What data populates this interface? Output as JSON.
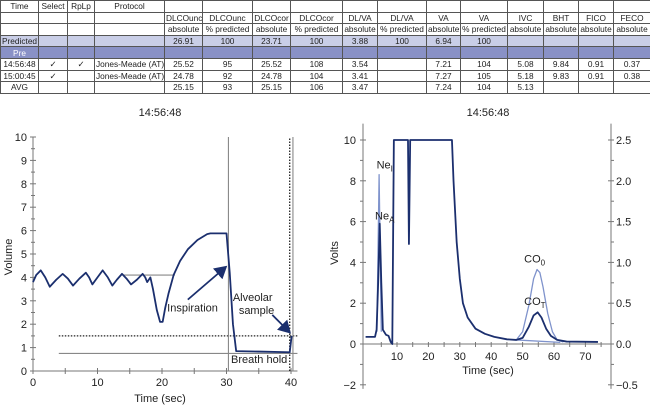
{
  "table": {
    "header_top": [
      "Time",
      "Select",
      "RpLp",
      "Protocol",
      "",
      "",
      "",
      "",
      "",
      "",
      "",
      "",
      "",
      "",
      "",
      ""
    ],
    "header_measure": [
      "",
      "",
      "",
      "",
      "DLCOunc",
      "DLCOunc",
      "DLCOcor",
      "DLCOcor",
      "DL/VA",
      "DL/VA",
      "VA",
      "VA",
      "IVC",
      "BHT",
      "FICO",
      "FECO"
    ],
    "header_unit": [
      "",
      "",
      "",
      "",
      "absolute",
      "% predicted",
      "absolute",
      "% predicted",
      "absolute",
      "% predicted",
      "absolute",
      "% predicted",
      "absolute",
      "absolute",
      "absolute",
      "absolute"
    ],
    "rows": [
      {
        "kind": "pred",
        "cells": [
          "Predicted",
          "",
          "",
          "",
          "26.91",
          "100",
          "23.71",
          "100",
          "3.88",
          "100",
          "6.94",
          "100",
          "",
          "",
          "",
          ""
        ]
      },
      {
        "kind": "pre",
        "cells": [
          "Pre",
          "",
          "",
          "",
          "",
          "",
          "",
          "",
          "",
          "",
          "",
          "",
          "",
          "",
          "",
          ""
        ]
      },
      {
        "kind": "data",
        "cells": [
          "14:56:48",
          "✓",
          "✓",
          "Jones-Meade (AT)",
          "25.52",
          "95",
          "25.52",
          "108",
          "3.54",
          "",
          "7.21",
          "104",
          "5.08",
          "9.84",
          "0.91",
          "0.37"
        ]
      },
      {
        "kind": "data",
        "cells": [
          "15:00:45",
          "✓",
          "",
          "Jones-Meade (AT)",
          "24.78",
          "92",
          "24.78",
          "104",
          "3.41",
          "",
          "7.27",
          "105",
          "5.18",
          "9.83",
          "0.91",
          "0.38"
        ]
      },
      {
        "kind": "data",
        "cells": [
          "AVG",
          "",
          "",
          "",
          "25.15",
          "93",
          "25.15",
          "106",
          "3.47",
          "",
          "7.24",
          "104",
          "5.13",
          "",
          "",
          ""
        ]
      }
    ],
    "colors": {
      "predicted": "#c9cee7",
      "pre": "#8991c6"
    }
  },
  "chart_data": [
    {
      "type": "line",
      "title": "14:56:48",
      "xlabel": "Time (sec)",
      "ylabel": "Volume",
      "xlim": [
        0,
        40
      ],
      "ylim": [
        0,
        10
      ],
      "xticks": [
        "0",
        "10",
        "20",
        "30",
        "40"
      ],
      "yticks": [
        "0",
        "1",
        "2",
        "3",
        "4",
        "5",
        "6",
        "7",
        "8",
        "9",
        "10"
      ],
      "series": [
        {
          "name": "volume",
          "color": "#1b2f6e",
          "points": [
            [
              0,
              3.8
            ],
            [
              0.5,
              4.1
            ],
            [
              1.2,
              4.3
            ],
            [
              1.9,
              4.0
            ],
            [
              2.6,
              3.6
            ],
            [
              3.6,
              3.9
            ],
            [
              4.6,
              4.15
            ],
            [
              5.4,
              3.95
            ],
            [
              6.2,
              3.65
            ],
            [
              7.2,
              3.95
            ],
            [
              8.2,
              4.2
            ],
            [
              8.7,
              4.0
            ],
            [
              9.2,
              3.7
            ],
            [
              10,
              4.0
            ],
            [
              10.8,
              4.3
            ],
            [
              11.6,
              4.0
            ],
            [
              12.3,
              3.65
            ],
            [
              13,
              3.9
            ],
            [
              13.8,
              4.15
            ],
            [
              14.5,
              3.95
            ],
            [
              15.2,
              3.7
            ],
            [
              16.1,
              3.9
            ],
            [
              17,
              4.15
            ],
            [
              17.4,
              4.0
            ],
            [
              17.7,
              3.8
            ],
            [
              18.2,
              4.0
            ],
            [
              18.6,
              3.5
            ],
            [
              19.2,
              2.6
            ],
            [
              19.7,
              2.1
            ],
            [
              20.1,
              2.1
            ],
            [
              20.5,
              2.7
            ],
            [
              21,
              3.3
            ],
            [
              21.8,
              4.1
            ],
            [
              22.8,
              4.7
            ],
            [
              24,
              5.2
            ],
            [
              25.5,
              5.6
            ],
            [
              27,
              5.85
            ],
            [
              27.5,
              5.88
            ],
            [
              30,
              5.88
            ],
            [
              30.5,
              4.2
            ],
            [
              31,
              2.0
            ],
            [
              31.5,
              0.85
            ],
            [
              35,
              0.83
            ],
            [
              39.8,
              0.8
            ],
            [
              40.1,
              1.5
            ]
          ]
        }
      ],
      "reference_lines": [
        {
          "kind": "h",
          "y": 4.1,
          "x": [
            14,
            22
          ],
          "style": "solid"
        },
        {
          "kind": "h",
          "y": 0.75,
          "x": [
            4,
            41
          ],
          "style": "solid"
        },
        {
          "kind": "h",
          "y": 1.5,
          "x": [
            4,
            41
          ],
          "style": "dotted"
        },
        {
          "kind": "v",
          "x": 30.3,
          "y": [
            0,
            10
          ],
          "style": "solid"
        },
        {
          "kind": "v",
          "x": 40.3,
          "y": [
            0,
            10
          ],
          "style": "solid"
        },
        {
          "kind": "v",
          "x": 39.8,
          "y": [
            0,
            10
          ],
          "style": "dotted"
        }
      ],
      "annotations": [
        {
          "text": "Inspiration",
          "at": [
            20.8,
            2.55
          ],
          "arrow_to": [
            29.9,
            4.45
          ]
        },
        {
          "text": "Alveolar sample",
          "at": [
            31.6,
            3.0
          ],
          "arrow_to": [
            39.8,
            1.65
          ]
        },
        {
          "text": "Breath hold",
          "at": [
            30.7,
            0.35
          ]
        }
      ]
    },
    {
      "type": "line",
      "title": "14:56:48",
      "xlabel": "Time (sec)",
      "ylabel": "Volts",
      "xlim": [
        0,
        75
      ],
      "ylim": [
        -2,
        10.8
      ],
      "y2lim": [
        -0.5,
        2.7
      ],
      "xticks": [
        "10",
        "20",
        "30",
        "40",
        "50",
        "60",
        "70"
      ],
      "yticks": [
        "−2",
        "0",
        "2",
        "4",
        "6",
        "8",
        "10"
      ],
      "y2ticks": [
        "−0.5",
        "0.0",
        "0.5",
        "1.0",
        "1.5",
        "2.0",
        "2.5"
      ],
      "series": [
        {
          "name": "main-trace",
          "color": "#1b2f6e",
          "points": [
            [
              0,
              0.35
            ],
            [
              3,
              0.35
            ],
            [
              3.5,
              0.7
            ],
            [
              4,
              3
            ],
            [
              4.5,
              5.9
            ],
            [
              5,
              3
            ],
            [
              5.5,
              0.7
            ],
            [
              6.5,
              0.45
            ],
            [
              7.3,
              0.4
            ],
            [
              8,
              0.1
            ],
            [
              8.5,
              0
            ],
            [
              9,
              10
            ],
            [
              13.5,
              10
            ],
            [
              13.8,
              4.9
            ],
            [
              14.2,
              10
            ],
            [
              27.5,
              10
            ],
            [
              28,
              8
            ],
            [
              29,
              5
            ],
            [
              30,
              3.2
            ],
            [
              31,
              2.0
            ],
            [
              32.5,
              1.3
            ],
            [
              35,
              0.75
            ],
            [
              38,
              0.5
            ],
            [
              41,
              0.35
            ],
            [
              45,
              0.23
            ],
            [
              48,
              0.2
            ],
            [
              50,
              0.3
            ],
            [
              52,
              0.85
            ],
            [
              53.5,
              1.4
            ],
            [
              54.8,
              1.55
            ],
            [
              56,
              1.3
            ],
            [
              57.5,
              0.75
            ],
            [
              59,
              0.4
            ],
            [
              61,
              0.2
            ],
            [
              64,
              0.12
            ],
            [
              74,
              0.1
            ]
          ]
        },
        {
          "name": "ne-inspired",
          "color": "#7f93cc",
          "points": [
            [
              3.6,
              0.6
            ],
            [
              4.3,
              8.3
            ],
            [
              5,
              0.6
            ]
          ]
        },
        {
          "name": "co-initial",
          "color": "#7f93cc",
          "points": [
            [
              48,
              0.2
            ],
            [
              50,
              0.6
            ],
            [
              52,
              1.9
            ],
            [
              53.5,
              3.2
            ],
            [
              54.6,
              3.65
            ],
            [
              55.5,
              3.5
            ],
            [
              56.5,
              2.8
            ],
            [
              58,
              1.5
            ],
            [
              59.5,
              0.6
            ],
            [
              61,
              0.2
            ],
            [
              63,
              0.1
            ]
          ]
        },
        {
          "name": "co-baseline",
          "color": "#7f93cc",
          "points": [
            [
              48,
              0.2
            ],
            [
              62,
              0.08
            ]
          ]
        }
      ],
      "annotations": [
        {
          "text": "Ne",
          "sub": "I",
          "at": [
            3.5,
            8.6
          ]
        },
        {
          "text": "Ne",
          "sub": "A",
          "at": [
            3.0,
            6.1
          ]
        },
        {
          "text": "CO",
          "sub": "0",
          "at": [
            50.5,
            4.0
          ]
        },
        {
          "text": "CO",
          "sub": "T",
          "at": [
            50.5,
            1.9
          ]
        }
      ]
    }
  ]
}
